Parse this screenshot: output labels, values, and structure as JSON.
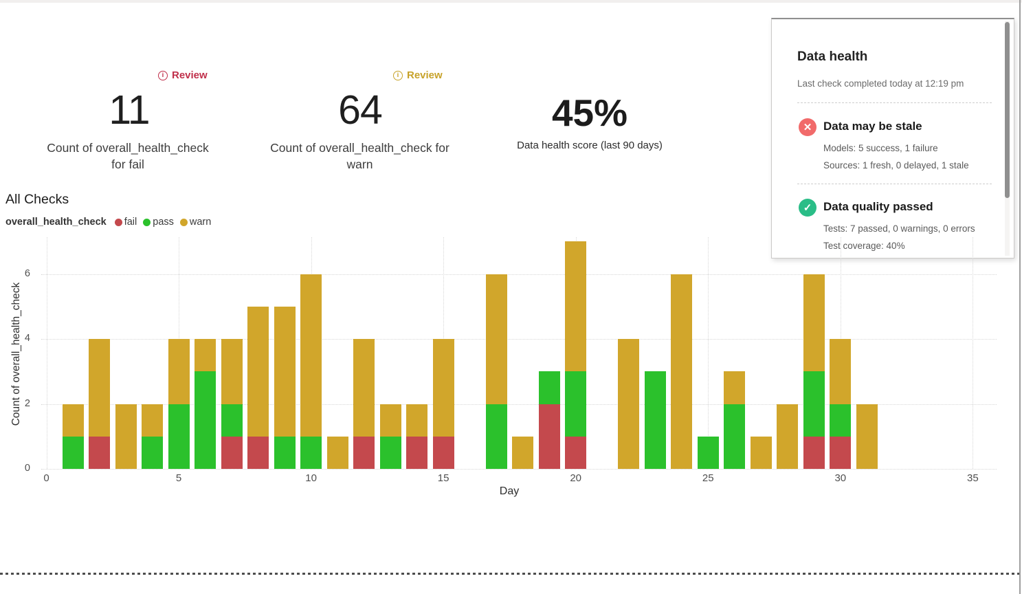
{
  "kpi_cards": [
    {
      "review_label": "Review",
      "value": "11",
      "label": "Count of overall_health_check for fail"
    },
    {
      "review_label": "Review",
      "value": "64",
      "label": "Count of overall_health_check for warn"
    },
    {
      "value": "45%",
      "label": "Data health score (last 90 days)"
    }
  ],
  "health_panel": {
    "title": "Data health",
    "last_check": "Last check completed today at 12:19 pm",
    "items": [
      {
        "icon": "x-circle",
        "title": "Data may be stale",
        "lines": [
          "Models: 5 success, 1 failure",
          "Sources: 1 fresh, 0 delayed, 1 stale"
        ]
      },
      {
        "icon": "check-circle",
        "title": "Data quality passed",
        "lines": [
          "Tests: 7 passed, 0 warnings, 0 errors",
          "Test coverage: 40%"
        ]
      }
    ]
  },
  "all_checks": {
    "title": "All Checks",
    "legend_title": "overall_health_check",
    "legend": [
      {
        "label": "fail",
        "color": "#c4494d"
      },
      {
        "label": "pass",
        "color": "#2bc12c"
      },
      {
        "label": "warn",
        "color": "#d1a62b"
      }
    ]
  },
  "colors": {
    "review_fail": "#c02f4a",
    "review_warn": "#c7a229",
    "stale_icon": "#f16a6a",
    "passed_icon": "#2abd87"
  },
  "icon_glyphs": {
    "x_circle": "✕",
    "check_circle": "✓",
    "info": "i"
  },
  "chart_data": {
    "type": "bar",
    "stacked": true,
    "title": "All Checks",
    "xlabel": "Day",
    "ylabel": "Count of overall_health_check",
    "x": [
      1,
      2,
      3,
      4,
      5,
      6,
      7,
      8,
      9,
      10,
      11,
      12,
      13,
      14,
      15,
      16,
      17,
      18,
      19,
      20,
      21,
      22,
      23,
      24,
      25,
      26,
      27,
      28,
      29,
      30,
      31
    ],
    "series": [
      {
        "name": "fail",
        "color": "#c4494d",
        "values": [
          0,
          1,
          0,
          0,
          0,
          0,
          1,
          1,
          0,
          0,
          0,
          1,
          0,
          1,
          1,
          0,
          0,
          0,
          2,
          1,
          0,
          0,
          0,
          0,
          0,
          0,
          0,
          0,
          1,
          1,
          0
        ]
      },
      {
        "name": "pass",
        "color": "#2bc12c",
        "values": [
          1,
          0,
          0,
          1,
          2,
          3,
          1,
          0,
          1,
          1,
          0,
          0,
          1,
          0,
          0,
          0,
          2,
          0,
          1,
          2,
          0,
          0,
          3,
          0,
          1,
          2,
          0,
          0,
          2,
          1,
          0
        ]
      },
      {
        "name": "warn",
        "color": "#d1a62b",
        "values": [
          1,
          3,
          2,
          1,
          2,
          1,
          2,
          4,
          4,
          5,
          1,
          3,
          1,
          1,
          3,
          0,
          4,
          1,
          0,
          4,
          0,
          4,
          0,
          6,
          0,
          1,
          1,
          2,
          3,
          2,
          2
        ]
      }
    ],
    "series_totals": {
      "fail": 11,
      "pass": 25,
      "warn": 64
    },
    "xticks": [
      0,
      5,
      10,
      15,
      20,
      25,
      30,
      35
    ],
    "yticks": [
      0,
      2,
      4,
      6
    ],
    "xlim": [
      0,
      36.9
    ],
    "ylim": [
      0,
      7.15
    ],
    "grid": "dotted",
    "legend_position": "top-left"
  }
}
